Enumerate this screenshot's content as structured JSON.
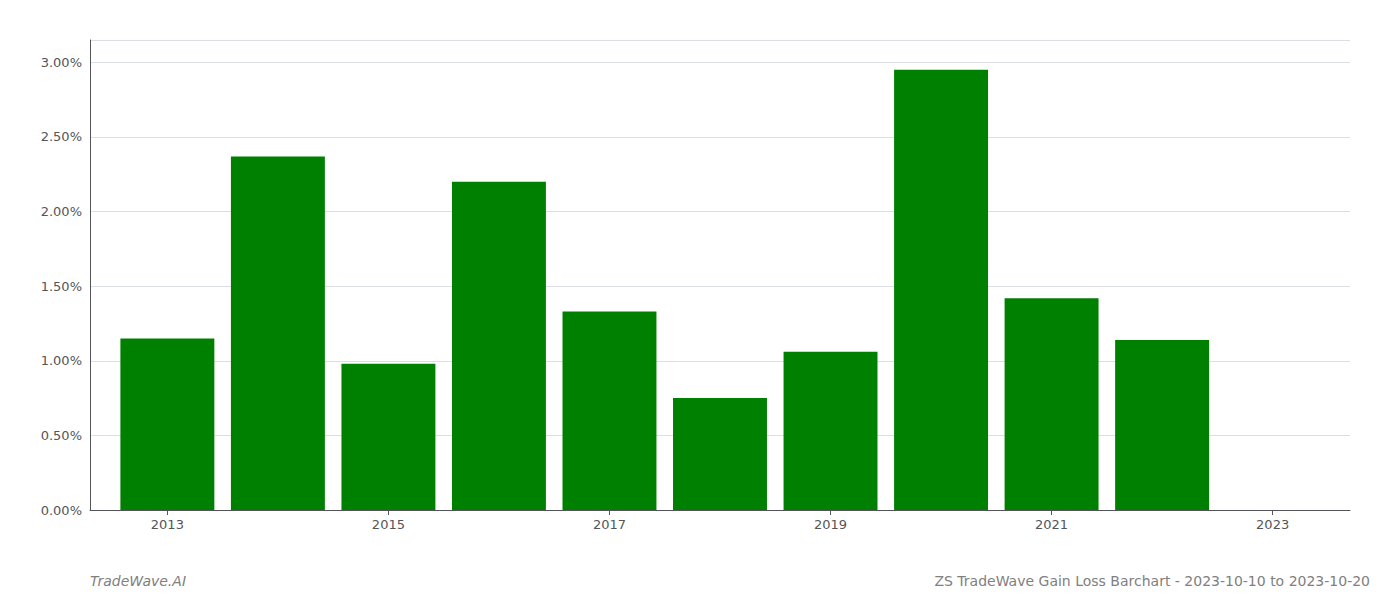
{
  "chart_data": {
    "type": "bar",
    "x": [
      2013,
      2014,
      2015,
      2016,
      2017,
      2018,
      2019,
      2020,
      2021,
      2022
    ],
    "values": [
      0.0115,
      0.0237,
      0.0098,
      0.022,
      0.0133,
      0.0075,
      0.0106,
      0.0295,
      0.0142,
      0.0114
    ],
    "color": "#008000",
    "xlim": [
      2012.3,
      2023.7
    ],
    "xticks": [
      2013,
      2015,
      2017,
      2019,
      2021,
      2023
    ],
    "ylim": [
      0,
      0.0315
    ],
    "yticks": [
      {
        "value": 0.0,
        "label": "0.00%"
      },
      {
        "value": 0.005,
        "label": "0.50%"
      },
      {
        "value": 0.01,
        "label": "1.00%"
      },
      {
        "value": 0.015,
        "label": "1.50%"
      },
      {
        "value": 0.02,
        "label": "2.00%"
      },
      {
        "value": 0.025,
        "label": "2.50%"
      },
      {
        "value": 0.03,
        "label": "3.00%"
      }
    ],
    "grid": true,
    "annotations": [
      "TradeWave.AI",
      "ZS TradeWave Gain Loss Barchart - 2023-10-10 to 2023-10-20"
    ]
  }
}
